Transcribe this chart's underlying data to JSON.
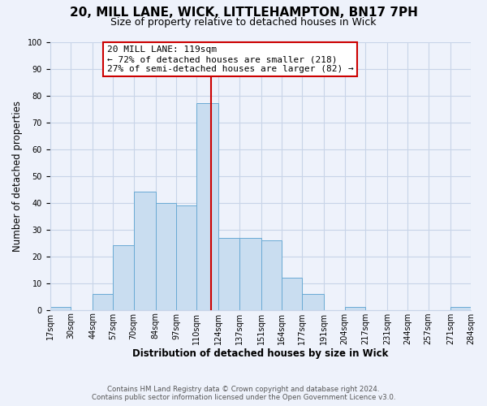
{
  "title": "20, MILL LANE, WICK, LITTLEHAMPTON, BN17 7PH",
  "subtitle": "Size of property relative to detached houses in Wick",
  "xlabel": "Distribution of detached houses by size in Wick",
  "ylabel": "Number of detached properties",
  "bin_labels": [
    "17sqm",
    "30sqm",
    "44sqm",
    "57sqm",
    "70sqm",
    "84sqm",
    "97sqm",
    "110sqm",
    "124sqm",
    "137sqm",
    "151sqm",
    "164sqm",
    "177sqm",
    "191sqm",
    "204sqm",
    "217sqm",
    "231sqm",
    "244sqm",
    "257sqm",
    "271sqm",
    "284sqm"
  ],
  "bar_heights": [
    1,
    0,
    6,
    24,
    44,
    40,
    39,
    77,
    27,
    27,
    26,
    12,
    6,
    0,
    1,
    0,
    0,
    0,
    0,
    1
  ],
  "bar_color": "#c9ddf0",
  "bar_edge_color": "#6aaad4",
  "ylim": [
    0,
    100
  ],
  "yticks": [
    0,
    10,
    20,
    30,
    40,
    50,
    60,
    70,
    80,
    90,
    100
  ],
  "vline_color": "#cc0000",
  "annotation_title": "20 MILL LANE: 119sqm",
  "annotation_line1": "← 72% of detached houses are smaller (218)",
  "annotation_line2": "27% of semi-detached houses are larger (82) →",
  "annotation_box_color": "#ffffff",
  "annotation_box_edge": "#cc0000",
  "footer1": "Contains HM Land Registry data © Crown copyright and database right 2024.",
  "footer2": "Contains public sector information licensed under the Open Government Licence v3.0.",
  "bg_color": "#eef2fb",
  "grid_color": "#c8d4e8",
  "title_fontsize": 11,
  "subtitle_fontsize": 9,
  "axis_label_fontsize": 8.5,
  "tick_fontsize": 7,
  "annot_fontsize": 8
}
